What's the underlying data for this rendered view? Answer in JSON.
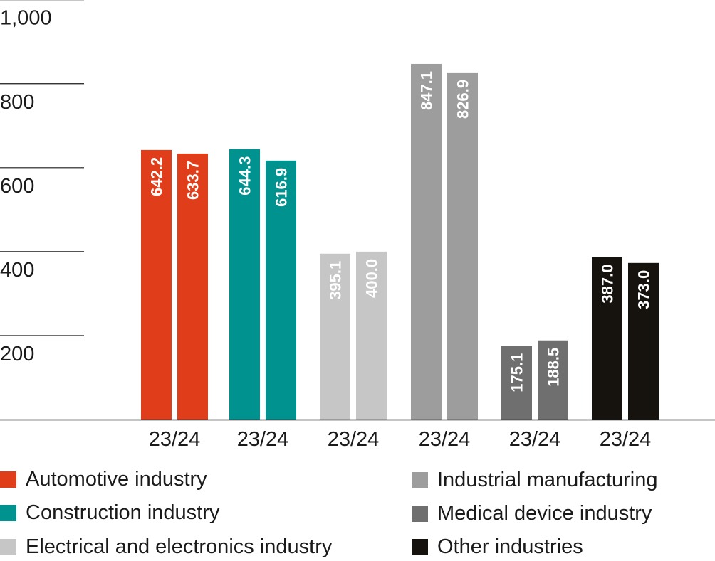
{
  "chart_data": {
    "type": "bar",
    "categories": [
      "23/24",
      "23/24",
      "23/24",
      "23/24",
      "23/24",
      "23/24"
    ],
    "series_groups": [
      {
        "name": "Automotive industry",
        "color": "#e03d1a",
        "values": [
          642.2,
          633.7
        ]
      },
      {
        "name": "Construction industry",
        "color": "#00928f",
        "values": [
          644.3,
          616.9
        ]
      },
      {
        "name": "Electrical and electronics industry",
        "color": "#c6c6c6",
        "values": [
          395.1,
          400.0
        ]
      },
      {
        "name": "Industrial manufacturing",
        "color": "#9d9d9d",
        "values": [
          847.1,
          826.9
        ]
      },
      {
        "name": "Medical device industry",
        "color": "#6f6f6f",
        "values": [
          175.1,
          188.5
        ]
      },
      {
        "name": "Other industries",
        "color": "#16130f",
        "values": [
          387.0,
          373.0
        ]
      }
    ],
    "data_labels": [
      [
        "642.2",
        "633.7"
      ],
      [
        "644.3",
        "616.9"
      ],
      [
        "395.1",
        "400.0"
      ],
      [
        "847.1",
        "826.9"
      ],
      [
        "175.1",
        "188.5"
      ],
      [
        "387.0",
        "373.0"
      ]
    ],
    "yticks": [
      "200",
      "400",
      "600",
      "800",
      "1,000"
    ],
    "ylim": [
      0,
      1000
    ],
    "grid": "partial horizontal lines at left",
    "legend_position": "bottom, two columns"
  },
  "legend": {
    "items": [
      {
        "label": "Automotive industry",
        "color": "#e03d1a"
      },
      {
        "label": "Construction industry",
        "color": "#00928f"
      },
      {
        "label": "Electrical and electronics industry",
        "color": "#c6c6c6"
      },
      {
        "label": "Industrial manufacturing",
        "color": "#9d9d9d"
      },
      {
        "label": "Medical device industry",
        "color": "#6f6f6f"
      },
      {
        "label": "Other industries",
        "color": "#16130f"
      }
    ]
  }
}
